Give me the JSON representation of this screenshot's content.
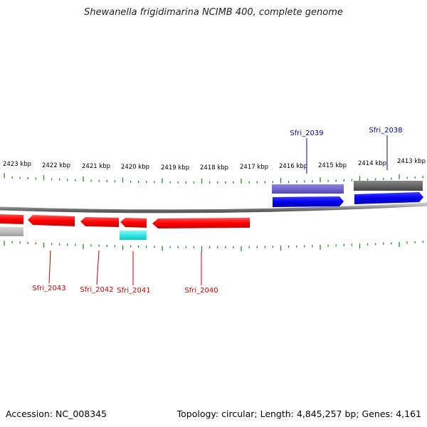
{
  "title": "Shewanella frigidimarina NCIMB 400, complete genome",
  "ruler": {
    "labels": [
      "2423 kbp",
      "2422 kbp",
      "2421 kbp",
      "2420 kbp",
      "2419 kbp",
      "2418 kbp",
      "2417 kbp",
      "2416 kbp",
      "2415 kbp",
      "2414 kbp",
      "2413 kbp"
    ]
  },
  "genes": [
    {
      "id": "Sfri_2043",
      "strand": "reverse",
      "color": "#ff0000"
    },
    {
      "id": "Sfri_2042",
      "strand": "reverse",
      "color": "#ff0000"
    },
    {
      "id": "Sfri_2041",
      "strand": "reverse",
      "color": "#ff0000"
    },
    {
      "id": "Sfri_2040",
      "strand": "reverse",
      "color": "#ff0000"
    },
    {
      "id": "Sfri_2039",
      "strand": "forward",
      "color": "#0000ee"
    },
    {
      "id": "Sfri_2038",
      "strand": "forward",
      "color": "#0000ee"
    }
  ],
  "colors": {
    "reverse_gene": "#ff0000",
    "forward_gene": "#0000ee",
    "reverse_label": "#cc0000",
    "forward_label": "#0000aa",
    "tick": "#228b22",
    "backbone": "#888888",
    "cyan_feature": "#00e5e5",
    "grey_feature": "#b0b0b0",
    "dark_feature": "#555555",
    "purple_feature": "#6a5acd"
  },
  "footer": {
    "accession": "Accession: NC_008345",
    "summary": "Topology: circular; Length: 4,845,257 bp; Genes: 4,161"
  }
}
